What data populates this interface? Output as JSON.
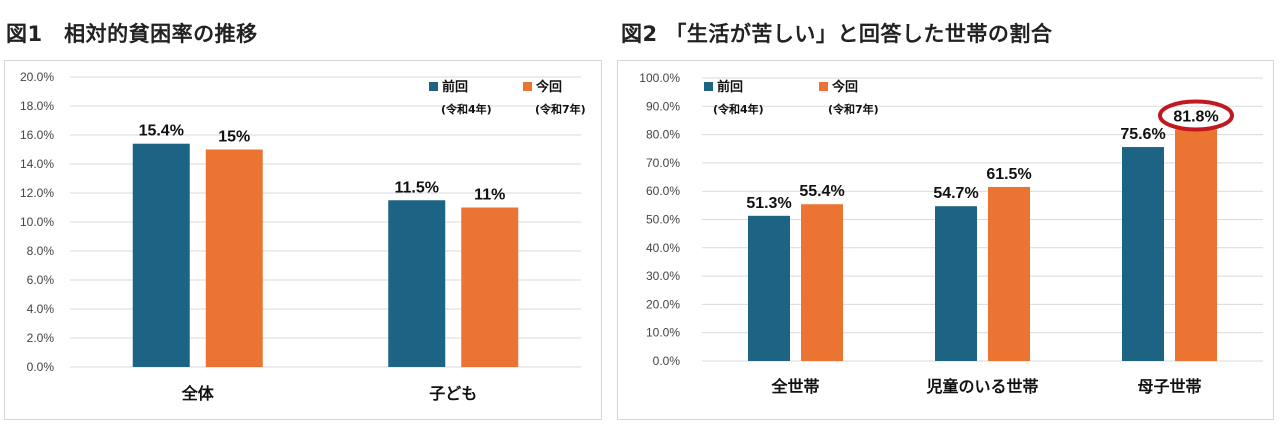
{
  "figures": {
    "fig1_title": "図1　相対的貧困率の推移",
    "fig2_title": "図2 「生活が苦しい」と回答した世帯の割合"
  },
  "chart_data": [
    {
      "type": "bar",
      "title": "図1　相対的貧困率の推移",
      "categories": [
        "全体",
        "子ども"
      ],
      "series": [
        {
          "name": "前回",
          "note": "(令和4年)",
          "color": "#1c6384",
          "values": [
            15.4,
            11.5
          ],
          "labels": [
            "15.4%",
            "11.5%"
          ]
        },
        {
          "name": "今回",
          "note": "(令和7年)",
          "color": "#ec7433",
          "values": [
            15.0,
            11.0
          ],
          "labels": [
            "15%",
            "11%"
          ]
        }
      ],
      "ylim": [
        0,
        20
      ],
      "yticks": [
        "0.0%",
        "2.0%",
        "4.0%",
        "6.0%",
        "8.0%",
        "10.0%",
        "12.0%",
        "14.0%",
        "16.0%",
        "18.0%",
        "20.0%"
      ],
      "grid": true,
      "legend_position": "top-right"
    },
    {
      "type": "bar",
      "title": "図2 「生活が苦しい」と回答した世帯の割合",
      "categories": [
        "全世帯",
        "児童のいる世帯",
        "母子世帯"
      ],
      "series": [
        {
          "name": "前回",
          "note": "(令和4年)",
          "color": "#1c6384",
          "values": [
            51.3,
            54.7,
            75.6
          ],
          "labels": [
            "51.3%",
            "54.7%",
            "75.6%"
          ]
        },
        {
          "name": "今回",
          "note": "(令和7年)",
          "color": "#ec7433",
          "values": [
            55.4,
            61.5,
            81.8
          ],
          "labels": [
            "55.4%",
            "61.5%",
            "81.8%"
          ]
        }
      ],
      "ylim": [
        0,
        100
      ],
      "yticks": [
        "0.0%",
        "10.0%",
        "20.0%",
        "30.0%",
        "40.0%",
        "50.0%",
        "60.0%",
        "70.0%",
        "80.0%",
        "90.0%",
        "100.0%"
      ],
      "grid": true,
      "legend_position": "top-left",
      "highlight": {
        "series": 1,
        "category": 2,
        "color": "#c0191f"
      }
    }
  ]
}
